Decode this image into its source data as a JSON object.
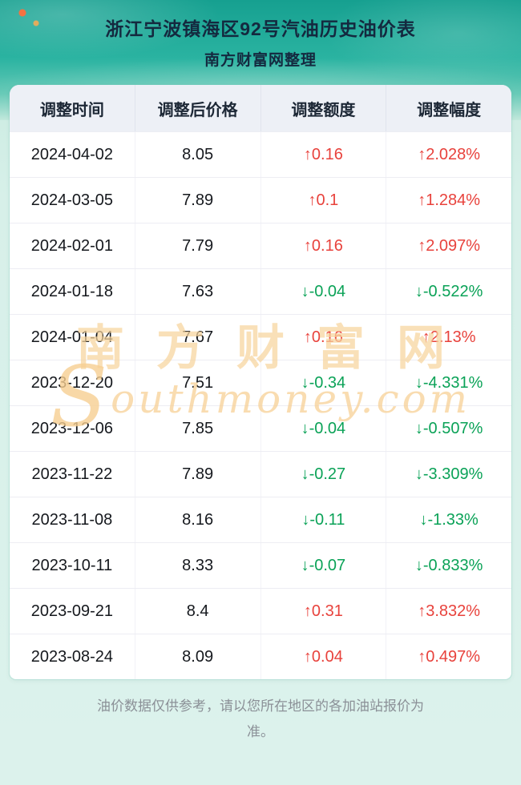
{
  "header": {
    "title": "浙江宁波镇海区92号汽油历史油价表",
    "subtitle": "南方财富网整理"
  },
  "table": {
    "headers": [
      "调整时间",
      "调整后价格",
      "调整额度",
      "调整幅度"
    ],
    "rows": [
      {
        "date": "2024-04-02",
        "price": "8.05",
        "change": "↑0.16",
        "percent": "↑2.028%",
        "direction": "up"
      },
      {
        "date": "2024-03-05",
        "price": "7.89",
        "change": "↑0.1",
        "percent": "↑1.284%",
        "direction": "up"
      },
      {
        "date": "2024-02-01",
        "price": "7.79",
        "change": "↑0.16",
        "percent": "↑2.097%",
        "direction": "up"
      },
      {
        "date": "2024-01-18",
        "price": "7.63",
        "change": "↓-0.04",
        "percent": "↓-0.522%",
        "direction": "down"
      },
      {
        "date": "2024-01-04",
        "price": "7.67",
        "change": "↑0.16",
        "percent": "↑2.13%",
        "direction": "up"
      },
      {
        "date": "2023-12-20",
        "price": "7.51",
        "change": "↓-0.34",
        "percent": "↓-4.331%",
        "direction": "down"
      },
      {
        "date": "2023-12-06",
        "price": "7.85",
        "change": "↓-0.04",
        "percent": "↓-0.507%",
        "direction": "down"
      },
      {
        "date": "2023-11-22",
        "price": "7.89",
        "change": "↓-0.27",
        "percent": "↓-3.309%",
        "direction": "down"
      },
      {
        "date": "2023-11-08",
        "price": "8.16",
        "change": "↓-0.11",
        "percent": "↓-1.33%",
        "direction": "down"
      },
      {
        "date": "2023-10-11",
        "price": "8.33",
        "change": "↓-0.07",
        "percent": "↓-0.833%",
        "direction": "down"
      },
      {
        "date": "2023-09-21",
        "price": "8.4",
        "change": "↑0.31",
        "percent": "↑3.832%",
        "direction": "up"
      },
      {
        "date": "2023-08-24",
        "price": "8.09",
        "change": "↑0.04",
        "percent": "↑0.497%",
        "direction": "up"
      }
    ]
  },
  "watermark": {
    "cn": "南方财富网",
    "en_initial": "S",
    "en_rest": "outhmoney.com"
  },
  "footer": {
    "note": "油价数据仅供参考，请以您所在地区的各加油站报价为准。"
  },
  "colors": {
    "up": "#e8423c",
    "down": "#0aa257",
    "banner_teal": "#2ab3a1",
    "page_bg": "#d9f1ea",
    "header_row_bg": "#edf0f6"
  }
}
